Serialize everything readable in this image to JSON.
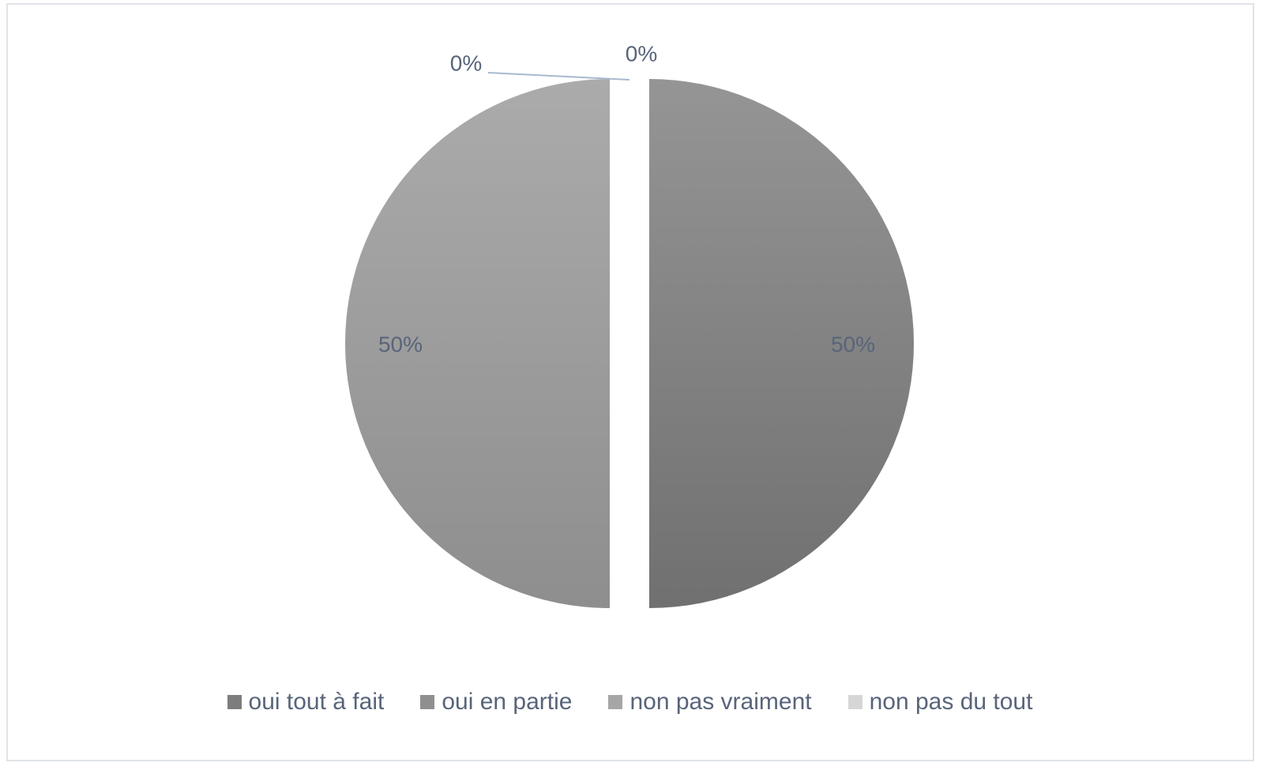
{
  "chart_data": {
    "type": "pie",
    "categories": [
      "oui tout à fait",
      "oui en partie",
      "non pas vraiment",
      "non pas du tout"
    ],
    "values": [
      50,
      0,
      50,
      0
    ],
    "data_labels": [
      "50%",
      "0%",
      "50%",
      "0%"
    ],
    "colors": [
      "#7d7d7d",
      "#8f8f8f",
      "#a6a6a6",
      "#d6d6d6"
    ],
    "label_color": "#58647a",
    "leader_line_color": "#a9b9cf",
    "legend_position": "bottom",
    "exploded": true
  }
}
